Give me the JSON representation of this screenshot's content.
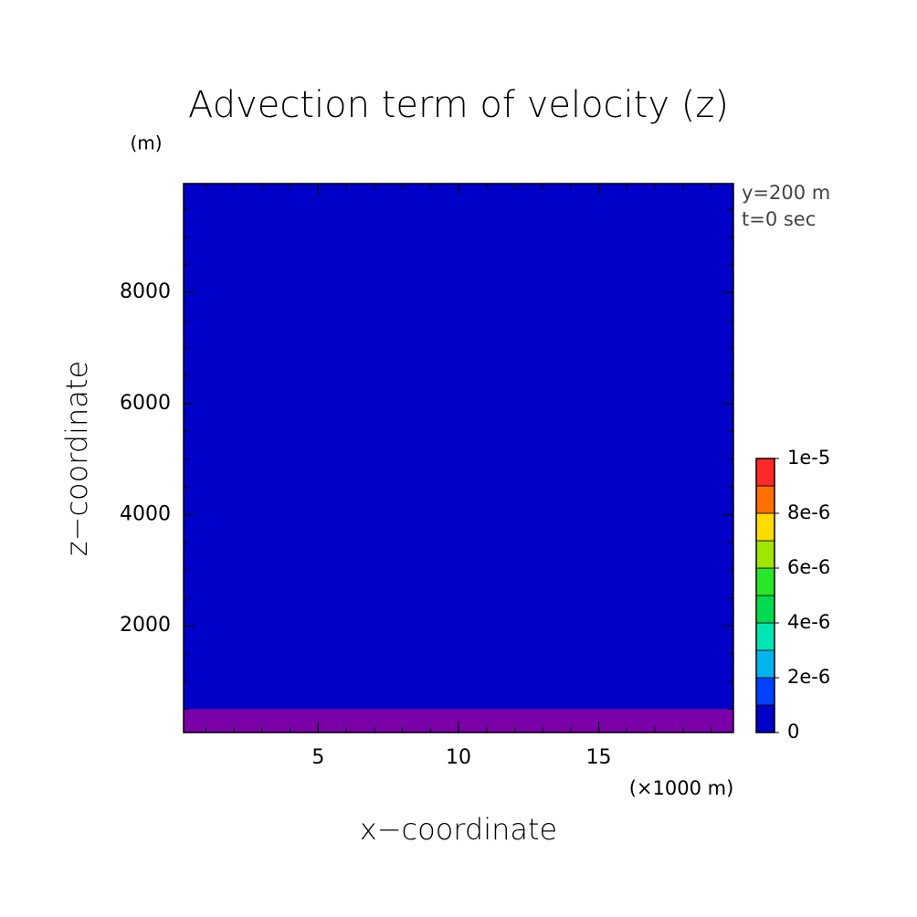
{
  "chart_data": {
    "type": "contour",
    "title": "Advection term of velocity (z)",
    "y_unit": "(m)",
    "x_unit": "(×1000 m)",
    "xlabel": "x−coordinate",
    "ylabel": "z−coordinate",
    "annotations": [
      "y=200 m",
      "t=0 sec"
    ],
    "xlim": [
      0.2,
      19.8
    ],
    "ylim": [
      80,
      9960
    ],
    "xticks": [
      5,
      10,
      15
    ],
    "yticks": [
      2000,
      4000,
      6000,
      8000
    ],
    "xminorticks": [
      1,
      2,
      3,
      4,
      6,
      7,
      8,
      9,
      11,
      12,
      13,
      14,
      16,
      17,
      18,
      19
    ],
    "yminorticks": [
      500,
      1000,
      1500,
      2500,
      3000,
      3500,
      4500,
      5000,
      5500,
      6500,
      7000,
      7500,
      8500,
      9000,
      9500
    ],
    "bands": [
      {
        "zlim": [
          80,
          500
        ],
        "color": "#7a00a8"
      },
      {
        "zlim": [
          500,
          9960
        ],
        "color": "#0000c8"
      }
    ],
    "colorbar": {
      "levels": [
        0,
        1e-06,
        2e-06,
        3e-06,
        4e-06,
        5e-06,
        6e-06,
        7e-06,
        8e-06,
        9e-06,
        1e-05
      ],
      "colors": [
        "#0000c8",
        "#0040ff",
        "#00b4f0",
        "#00e6b4",
        "#00dc50",
        "#28e628",
        "#a0e600",
        "#ffdc00",
        "#ff7000",
        "#ff2828"
      ],
      "ticks": [
        0,
        {
          "value": 2e-06,
          "label": "2e-6"
        },
        {
          "value": 4e-06,
          "label": "4e-6"
        },
        {
          "value": 6e-06,
          "label": "6e-6"
        },
        {
          "value": 8e-06,
          "label": "8e-6"
        },
        {
          "value": 1e-05,
          "label": "1e-5"
        }
      ]
    }
  }
}
